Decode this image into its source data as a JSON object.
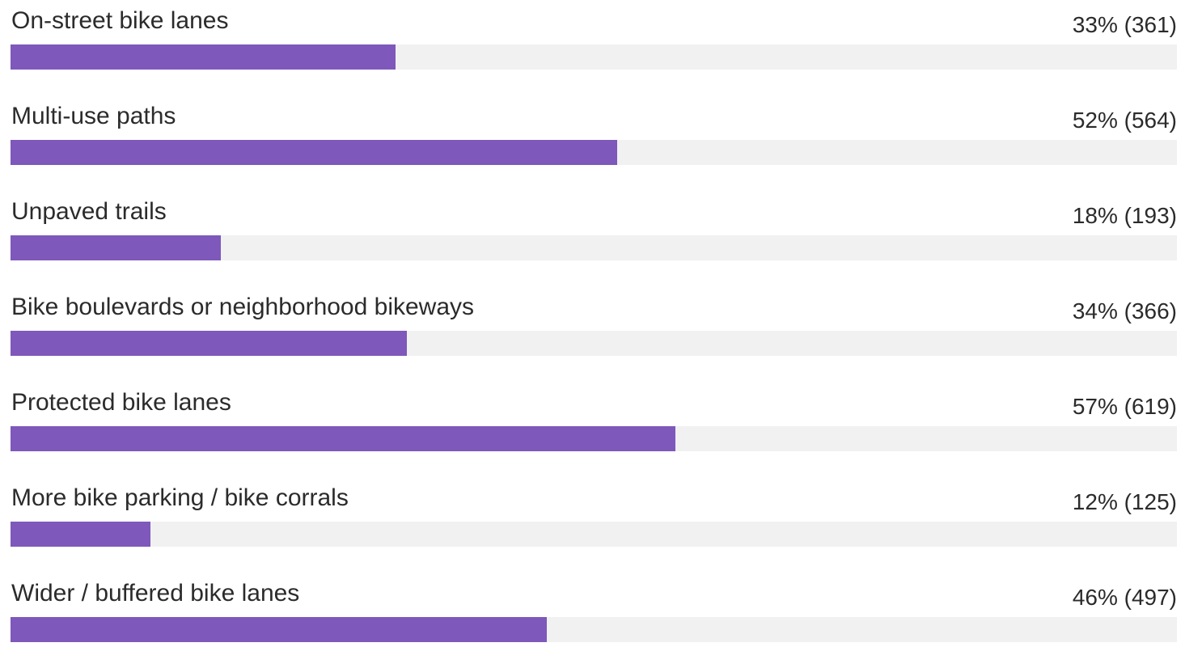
{
  "colors": {
    "bar": "#7e58ba",
    "track": "#f1f1f1",
    "text": "#2b2b2b"
  },
  "chart_data": {
    "type": "bar",
    "orientation": "horizontal",
    "categories": [
      "On-street bike lanes",
      "Multi-use paths",
      "Unpaved trails",
      "Bike boulevards or neighborhood bikeways",
      "Protected bike lanes",
      "More bike parking / bike corrals",
      "Wider / buffered bike lanes"
    ],
    "series": [
      {
        "percent": [
          33,
          52,
          18,
          34,
          57,
          12,
          46
        ],
        "counts": [
          361,
          564,
          193,
          366,
          619,
          125,
          497
        ]
      }
    ],
    "value_labels": [
      "33% (361)",
      "52% (564)",
      "18% (193)",
      "34% (366)",
      "57% (619)",
      "12% (125)",
      "46% (497)"
    ],
    "xlim": [
      0,
      100
    ],
    "grid": false,
    "legend": "none"
  }
}
